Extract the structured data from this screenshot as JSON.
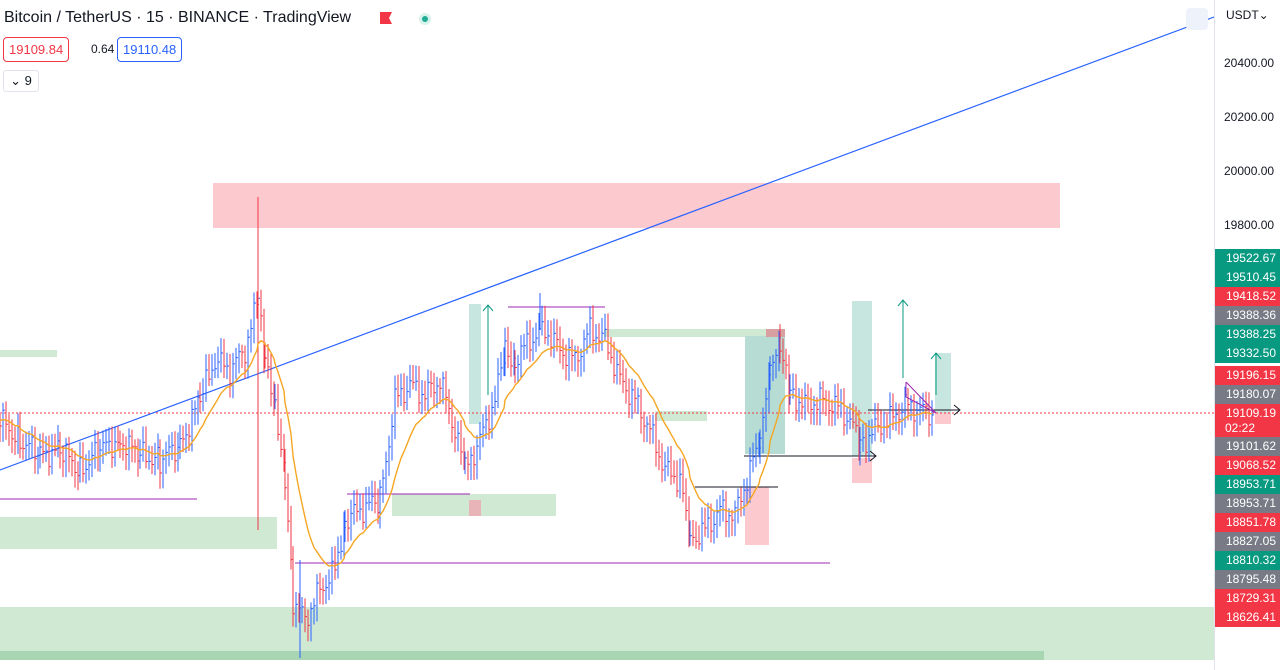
{
  "header": {
    "title": "Bitcoin / TetherUS · 15 · BINANCE · TradingView",
    "bid": "19109.84",
    "spread": "0.64",
    "ask": "19110.48",
    "indicators_count": "9",
    "indicators_toggle_icon": "chevron-down-icon"
  },
  "price_scale": {
    "currency": "USDT",
    "ticks": [
      "20400.00",
      "20200.00",
      "20000.00",
      "19800.00"
    ],
    "labels": [
      {
        "value": "19522.67",
        "color": "#089981"
      },
      {
        "value": "19510.45",
        "color": "#089981"
      },
      {
        "value": "19418.52",
        "color": "#f23645"
      },
      {
        "value": "19388.36",
        "color": "#787b86"
      },
      {
        "value": "19388.25",
        "color": "#089981"
      },
      {
        "value": "19332.50",
        "color": "#089981"
      },
      {
        "value": "19196.15",
        "color": "#f23645"
      },
      {
        "value": "19180.07",
        "color": "#787b86"
      },
      {
        "value": "19109.19",
        "color": "#f23645"
      },
      {
        "value": "19101.62",
        "color": "#787b86"
      },
      {
        "value": "19068.52",
        "color": "#f23645"
      },
      {
        "value": "18953.71",
        "color": "#089981"
      },
      {
        "value": "18953.71",
        "color": "#787b86"
      },
      {
        "value": "18851.78",
        "color": "#f23645"
      },
      {
        "value": "18827.05",
        "color": "#787b86"
      },
      {
        "value": "18810.32",
        "color": "#089981"
      },
      {
        "value": "18795.48",
        "color": "#787b86"
      },
      {
        "value": "18729.31",
        "color": "#f23645"
      },
      {
        "value": "18626.41",
        "color": "#f23645"
      }
    ],
    "countdown": "02:22"
  },
  "colors": {
    "up": "#2962ff",
    "down": "#f23645",
    "ma": "#f5a623",
    "trendline": "#2962ff",
    "supply_zone": "#fcc9cf",
    "demand_zone": "#cfe9d3"
  }
}
